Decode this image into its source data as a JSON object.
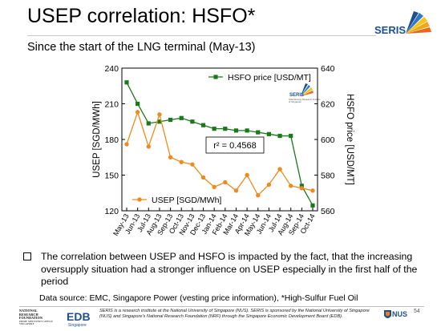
{
  "slide": {
    "title": "USEP correlation: HSFO*",
    "subtitle": "Since the start of the LNG terminal (May-13)",
    "logo_text": "SERIS",
    "bullet": "The correlation between USEP and HSFO is impacted by the fact, that the increasing oversupply situation had a stronger influence on USEP especially in the first half of the period",
    "source": "Data source: EMC, Singapore Power (vesting price information), *High-Sulfur Fuel Oil",
    "page_number": "54"
  },
  "footer": {
    "nrf_lines": [
      "NATIONAL",
      "RESEARCH",
      "FOUNDATION"
    ],
    "nrf_small": "PRIME MINISTER'S OFFICE SINGAPORE",
    "edb_text": "EDB",
    "edb_sub": "Singapore",
    "nus_text": "NUS",
    "disclaimer": "SERIS is a research institute at the National University of Singapore (NUS). SERIS is sponsored by the National University of Singapore (NUS) and Singapore's National Research Foundation (NRF) through the Singapore Economic Development Board (EDB)."
  },
  "chart_data": {
    "type": "line",
    "categories": [
      "May-13",
      "Jun-13",
      "Jul-13",
      "Aug-13",
      "Sep-13",
      "Oct-13",
      "Nov-13",
      "Dec-13",
      "Jan-14",
      "Feb-14",
      "Mar-14",
      "Apr-14",
      "May-14",
      "Jun-14",
      "Jul-14",
      "Aug-14",
      "Sep-14",
      "Oct-14"
    ],
    "series": [
      {
        "name": "HSFO price [USD/MT]",
        "axis": "right",
        "color": "#1a7a1a",
        "marker": "square",
        "values": [
          632,
          620,
          609,
          610,
          611,
          612,
          610,
          608,
          606,
          606,
          605,
          605,
          604,
          603,
          602,
          602,
          574,
          563
        ]
      },
      {
        "name": "USEP [SGD/MWh]",
        "axis": "left",
        "color": "#f08a1c",
        "marker": "circle",
        "values": [
          176,
          203,
          174,
          201,
          165,
          161,
          159,
          148,
          140,
          144,
          137,
          150,
          133,
          142,
          155,
          141,
          139,
          137
        ]
      }
    ],
    "ylabel": "USEP [SGD/MWh]",
    "ylim": [
      120,
      240
    ],
    "yticks": [
      120,
      150,
      180,
      210,
      240
    ],
    "y2label": "HSFO price [USD/MT]",
    "y2lim": [
      560,
      640
    ],
    "y2ticks": [
      560,
      580,
      600,
      620,
      640
    ],
    "annotation": "r² = 0.4568",
    "inset_logo": {
      "name": "SERIS",
      "caption": "Solar Energy Research Institute of Singapore"
    },
    "grid": false
  }
}
